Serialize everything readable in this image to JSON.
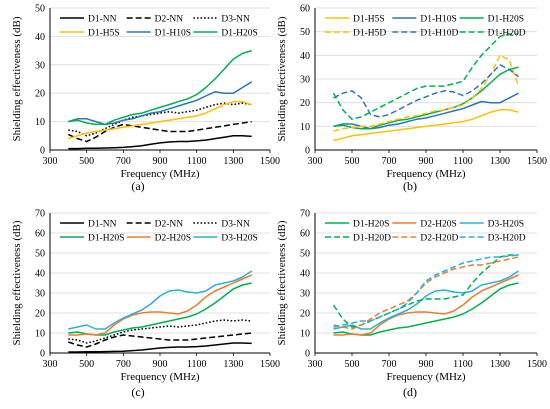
{
  "chart_data": [
    {
      "type": "line",
      "panel_label": "(a)",
      "xlabel": "Frequency (MHz)",
      "ylabel": "Shielding effectiveness (dB)",
      "xlim": [
        300,
        1500
      ],
      "ylim": [
        0,
        50
      ],
      "xticks": [
        300,
        500,
        700,
        900,
        1100,
        1300,
        1500
      ],
      "yticks": [
        0,
        10,
        20,
        30,
        40,
        50
      ],
      "grid": "horizontal",
      "legend": "top, 3 columns",
      "x": [
        400,
        450,
        500,
        550,
        600,
        650,
        700,
        750,
        800,
        850,
        900,
        950,
        1000,
        1050,
        1100,
        1150,
        1200,
        1250,
        1300,
        1350,
        1400
      ],
      "series": [
        {
          "name": "D1-NN",
          "color": "#000000",
          "dash": "solid",
          "values": [
            0.5,
            0.5,
            0.6,
            0.6,
            0.7,
            0.8,
            0.9,
            1.2,
            1.5,
            2.0,
            2.5,
            2.8,
            3.0,
            3.0,
            3.2,
            3.5,
            4.0,
            4.5,
            5.0,
            5.0,
            4.8
          ]
        },
        {
          "name": "D2-NN",
          "color": "#000000",
          "dash": "dashed",
          "values": [
            5.5,
            4.0,
            3.0,
            4.5,
            6.5,
            8.0,
            9.0,
            8.5,
            8.0,
            7.5,
            7.0,
            6.5,
            6.5,
            6.5,
            7.0,
            7.5,
            8.0,
            8.5,
            9.0,
            9.5,
            10.0
          ]
        },
        {
          "name": "D3-NN",
          "color": "#000000",
          "dash": "dotted",
          "values": [
            7.0,
            6.5,
            5.0,
            6.0,
            7.5,
            9.0,
            10.5,
            11.5,
            12.0,
            12.5,
            13.0,
            13.5,
            13.0,
            13.5,
            14.0,
            15.0,
            16.0,
            16.5,
            16.0,
            16.5,
            16.0
          ]
        },
        {
          "name": "D1-H5S",
          "color": "#FFC000",
          "dash": "solid",
          "values": [
            4.0,
            5.0,
            6.0,
            6.5,
            7.0,
            7.5,
            8.0,
            8.5,
            9.0,
            9.5,
            10.0,
            10.5,
            11.0,
            11.5,
            12.0,
            13.0,
            14.5,
            16.0,
            17.0,
            17.0,
            16.0
          ]
        },
        {
          "name": "D1-H10S",
          "color": "#2E75B6",
          "dash": "solid",
          "values": [
            10.0,
            11.0,
            11.0,
            10.0,
            9.0,
            9.5,
            10.5,
            11.0,
            12.0,
            13.0,
            13.5,
            14.5,
            15.5,
            16.5,
            17.5,
            19.0,
            20.5,
            20.0,
            20.0,
            22.0,
            24.0
          ]
        },
        {
          "name": "D1-H20S",
          "color": "#00B050",
          "dash": "solid",
          "values": [
            10.0,
            10.5,
            9.5,
            9.0,
            9.0,
            10.5,
            11.5,
            12.5,
            13.0,
            14.0,
            15.0,
            16.0,
            17.0,
            18.0,
            19.5,
            22.0,
            25.0,
            28.5,
            32.0,
            34.0,
            35.0
          ]
        }
      ]
    },
    {
      "type": "line",
      "panel_label": "(b)",
      "xlabel": "Frequency (MHz)",
      "ylabel": "Shielding effectiveness (dB)",
      "xlim": [
        300,
        1500
      ],
      "ylim": [
        0,
        60
      ],
      "xticks": [
        300,
        500,
        700,
        900,
        1100,
        1300,
        1500
      ],
      "yticks": [
        0,
        10,
        20,
        30,
        40,
        50,
        60
      ],
      "grid": "horizontal",
      "legend": "top, 3 columns",
      "x": [
        400,
        450,
        500,
        550,
        600,
        650,
        700,
        750,
        800,
        850,
        900,
        950,
        1000,
        1050,
        1100,
        1150,
        1200,
        1250,
        1300,
        1350,
        1400
      ],
      "series": [
        {
          "name": "D1-H5S",
          "color": "#FFC000",
          "dash": "solid",
          "values": [
            4.0,
            5.0,
            6.0,
            6.5,
            7.0,
            7.5,
            8.0,
            8.5,
            9.0,
            9.5,
            10.0,
            10.5,
            11.0,
            11.5,
            12.0,
            13.0,
            14.5,
            16.0,
            17.0,
            17.0,
            16.0
          ]
        },
        {
          "name": "D1-H10S",
          "color": "#2E75B6",
          "dash": "solid",
          "values": [
            10.0,
            11.0,
            11.0,
            10.0,
            9.0,
            9.5,
            10.5,
            11.0,
            12.0,
            13.0,
            13.5,
            14.5,
            15.5,
            16.5,
            17.5,
            19.0,
            20.5,
            20.0,
            20.0,
            22.0,
            24.0
          ]
        },
        {
          "name": "D1-H20S",
          "color": "#00B050",
          "dash": "solid",
          "values": [
            10.0,
            10.5,
            9.5,
            9.0,
            9.0,
            10.5,
            11.5,
            12.5,
            13.0,
            14.0,
            15.0,
            16.0,
            17.0,
            18.0,
            19.5,
            22.0,
            25.0,
            28.5,
            32.0,
            34.0,
            35.0
          ]
        },
        {
          "name": "D1-H5D",
          "color": "#FFC000",
          "dash": "dashed",
          "values": [
            8.0,
            9.0,
            9.5,
            10.0,
            10.0,
            11.0,
            12.0,
            13.0,
            14.0,
            14.5,
            15.5,
            16.5,
            17.0,
            18.0,
            19.0,
            22.0,
            26.0,
            32.0,
            40.0,
            38.0,
            27.0
          ]
        },
        {
          "name": "D1-H10D",
          "color": "#2E75B6",
          "dash": "dashed",
          "values": [
            22.0,
            24.0,
            25.0,
            22.0,
            15.0,
            14.0,
            15.0,
            17.0,
            19.0,
            21.0,
            22.5,
            24.0,
            25.0,
            24.5,
            23.0,
            25.0,
            28.0,
            32.0,
            36.0,
            34.0,
            31.0
          ]
        },
        {
          "name": "D1-H20D",
          "color": "#00B050",
          "dash": "dashed",
          "values": [
            24.0,
            17.0,
            13.0,
            14.0,
            16.0,
            18.0,
            20.0,
            22.0,
            24.0,
            26.0,
            27.0,
            27.0,
            27.0,
            28.0,
            29.0,
            35.0,
            40.0,
            44.0,
            48.0,
            49.0,
            49.0
          ]
        }
      ]
    },
    {
      "type": "line",
      "panel_label": "(c)",
      "xlabel": "Frequency (MHz)",
      "ylabel": "Shielding effectiveness (dB)",
      "xlim": [
        300,
        1500
      ],
      "ylim": [
        0,
        70
      ],
      "xticks": [
        300,
        500,
        700,
        900,
        1100,
        1300,
        1500
      ],
      "yticks": [
        0,
        10,
        20,
        30,
        40,
        50,
        60,
        70
      ],
      "grid": "horizontal",
      "legend": "top, 3 columns",
      "x": [
        400,
        450,
        500,
        550,
        600,
        650,
        700,
        750,
        800,
        850,
        900,
        950,
        1000,
        1050,
        1100,
        1150,
        1200,
        1250,
        1300,
        1350,
        1400
      ],
      "series": [
        {
          "name": "D1-NN",
          "color": "#000000",
          "dash": "solid",
          "values": [
            0.5,
            0.5,
            0.6,
            0.6,
            0.7,
            0.8,
            0.9,
            1.2,
            1.5,
            2.0,
            2.5,
            2.8,
            3.0,
            3.0,
            3.2,
            3.5,
            4.0,
            4.5,
            5.0,
            5.0,
            4.8
          ]
        },
        {
          "name": "D2-NN",
          "color": "#000000",
          "dash": "dashed",
          "values": [
            5.5,
            4.0,
            3.0,
            4.5,
            6.5,
            8.0,
            9.0,
            8.5,
            8.0,
            7.5,
            7.0,
            6.5,
            6.5,
            6.5,
            7.0,
            7.5,
            8.0,
            8.5,
            9.0,
            9.5,
            10.0
          ]
        },
        {
          "name": "D3-NN",
          "color": "#000000",
          "dash": "dotted",
          "values": [
            7.0,
            6.5,
            5.0,
            6.0,
            7.5,
            9.0,
            10.5,
            11.5,
            12.0,
            12.5,
            13.0,
            13.5,
            13.0,
            13.5,
            14.0,
            15.0,
            16.0,
            16.5,
            16.0,
            16.5,
            16.0
          ]
        },
        {
          "name": "D1-H20S",
          "color": "#00B050",
          "dash": "solid",
          "values": [
            10.0,
            10.5,
            9.5,
            9.0,
            9.0,
            10.5,
            11.5,
            12.5,
            13.0,
            14.0,
            15.0,
            16.0,
            17.0,
            18.0,
            19.5,
            22.0,
            25.0,
            28.5,
            32.0,
            34.0,
            35.0
          ]
        },
        {
          "name": "D2-H20S",
          "color": "#ED7D31",
          "dash": "solid",
          "values": [
            9.0,
            9.0,
            9.5,
            9.0,
            10.0,
            14.0,
            17.0,
            19.0,
            20.0,
            20.5,
            20.5,
            20.0,
            19.5,
            21.0,
            24.0,
            28.0,
            31.0,
            33.0,
            35.0,
            37.0,
            39.0
          ]
        },
        {
          "name": "D3-H20S",
          "color": "#2CB0D8",
          "dash": "solid",
          "values": [
            12.0,
            13.0,
            14.0,
            12.0,
            12.0,
            15.0,
            17.5,
            19.5,
            21.5,
            24.5,
            28.5,
            31.0,
            31.5,
            30.5,
            30.0,
            31.0,
            34.0,
            35.0,
            36.0,
            38.0,
            41.0
          ]
        }
      ]
    },
    {
      "type": "line",
      "panel_label": "(d)",
      "xlabel": "Frequency (MHz)",
      "ylabel": "Shielding effectiveness (dB)",
      "xlim": [
        300,
        1500
      ],
      "ylim": [
        0,
        70
      ],
      "xticks": [
        300,
        500,
        700,
        900,
        1100,
        1300,
        1500
      ],
      "yticks": [
        0,
        10,
        20,
        30,
        40,
        50,
        60,
        70
      ],
      "grid": "horizontal",
      "legend": "top, 3 columns",
      "x": [
        400,
        450,
        500,
        550,
        600,
        650,
        700,
        750,
        800,
        850,
        900,
        950,
        1000,
        1050,
        1100,
        1150,
        1200,
        1250,
        1300,
        1350,
        1400
      ],
      "series": [
        {
          "name": "D1-H20S",
          "color": "#00B050",
          "dash": "solid",
          "values": [
            10.0,
            10.5,
            9.5,
            9.0,
            9.0,
            10.5,
            11.5,
            12.5,
            13.0,
            14.0,
            15.0,
            16.0,
            17.0,
            18.0,
            19.5,
            22.0,
            25.0,
            28.5,
            32.0,
            34.0,
            35.0
          ]
        },
        {
          "name": "D2-H20S",
          "color": "#ED7D31",
          "dash": "solid",
          "values": [
            9.0,
            9.0,
            9.5,
            9.0,
            10.0,
            14.0,
            17.0,
            19.0,
            20.0,
            20.5,
            20.5,
            20.0,
            19.5,
            21.0,
            24.0,
            28.0,
            31.0,
            33.0,
            35.0,
            37.0,
            39.0
          ]
        },
        {
          "name": "D3-H20S",
          "color": "#2CB0D8",
          "dash": "solid",
          "values": [
            12.0,
            13.0,
            14.0,
            12.0,
            12.0,
            15.0,
            17.5,
            19.5,
            21.5,
            24.5,
            28.5,
            31.0,
            31.5,
            30.5,
            30.0,
            31.0,
            34.0,
            35.0,
            36.0,
            38.0,
            41.0
          ]
        },
        {
          "name": "D1-H20D",
          "color": "#00B050",
          "dash": "dashed",
          "values": [
            24.0,
            17.0,
            13.0,
            14.0,
            16.0,
            18.0,
            20.0,
            22.0,
            24.0,
            26.0,
            27.0,
            27.0,
            27.0,
            28.0,
            29.0,
            35.0,
            40.0,
            44.0,
            48.0,
            49.0,
            49.0
          ]
        },
        {
          "name": "D2-H20D",
          "color": "#ED7D31",
          "dash": "dashed",
          "values": [
            14.0,
            13.0,
            12.0,
            14.0,
            17.0,
            20.0,
            22.0,
            24.0,
            26.0,
            30.0,
            35.0,
            38.0,
            40.0,
            42.0,
            43.0,
            44.0,
            44.0,
            45.0,
            46.0,
            47.0,
            48.0
          ]
        },
        {
          "name": "D3-H20D",
          "color": "#2CB0D8",
          "dash": "dashed",
          "values": [
            13.0,
            14.0,
            15.0,
            16.0,
            16.0,
            18.0,
            20.0,
            22.0,
            25.0,
            30.0,
            36.0,
            39.0,
            41.0,
            43.0,
            45.0,
            46.0,
            47.0,
            48.0,
            48.0,
            48.5,
            49.0
          ]
        }
      ]
    }
  ]
}
